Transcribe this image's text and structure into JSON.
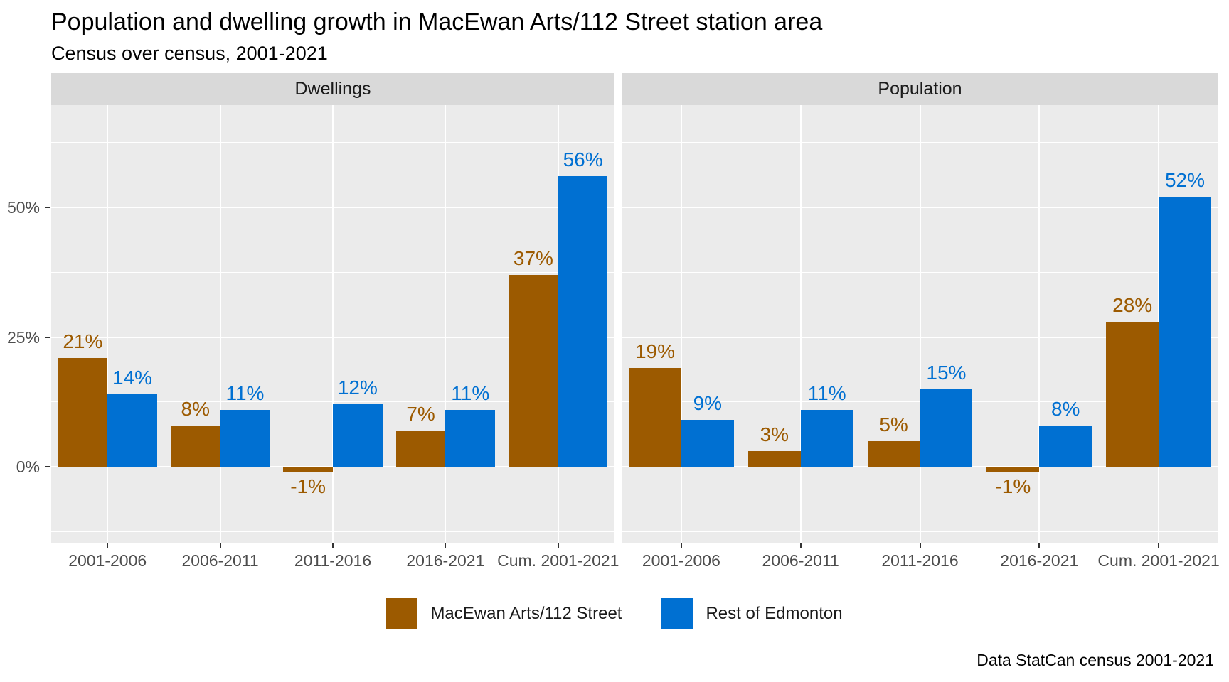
{
  "colors": {
    "macewan_brown": "#9C5A00",
    "edmonton_blue": "#0070D2",
    "panel_bg": "#EBEBEB",
    "strip_bg": "#D9D9D9",
    "strip_text": "#1A1A1A",
    "grid": "#FFFFFF",
    "axis_text": "#4D4D4D",
    "tick_mark": "#333333",
    "background": "#FFFFFF"
  },
  "chart_data": {
    "type": "bar",
    "title": "Population and dwelling growth in MacEwan Arts/112 Street station area",
    "subtitle": "Census over census, 2001-2021",
    "caption": "Data StatCan census 2001-2021",
    "facet_variable_values": [
      "Dwellings",
      "Population"
    ],
    "categories": [
      "2001-2006",
      "2006-2011",
      "2011-2016",
      "2016-2021",
      "Cum. 2001-2021"
    ],
    "value_unit": "%",
    "facets": [
      {
        "label": "Dwellings",
        "series": [
          {
            "name": "MacEwan Arts/112 Street",
            "color": "#9C5A00",
            "values": [
              21,
              8,
              -1,
              7,
              37
            ]
          },
          {
            "name": "Rest of Edmonton",
            "color": "#0070D2",
            "values": [
              14,
              11,
              12,
              11,
              56
            ]
          }
        ]
      },
      {
        "label": "Population",
        "series": [
          {
            "name": "MacEwan Arts/112 Street",
            "color": "#9C5A00",
            "values": [
              19,
              3,
              5,
              -1,
              28
            ]
          },
          {
            "name": "Rest of Edmonton",
            "color": "#0070D2",
            "values": [
              9,
              11,
              15,
              8,
              52
            ]
          }
        ]
      }
    ],
    "y_axis": {
      "ticks": [
        0,
        25,
        50
      ],
      "tick_labels": [
        "0%",
        "25%",
        "50%"
      ],
      "minor_ticks": [
        -12.5,
        12.5,
        37.5,
        62.5
      ],
      "range": [
        -15,
        70
      ],
      "label": ""
    },
    "grid": true,
    "legend_position": "bottom",
    "bar_labels_shown": true
  }
}
